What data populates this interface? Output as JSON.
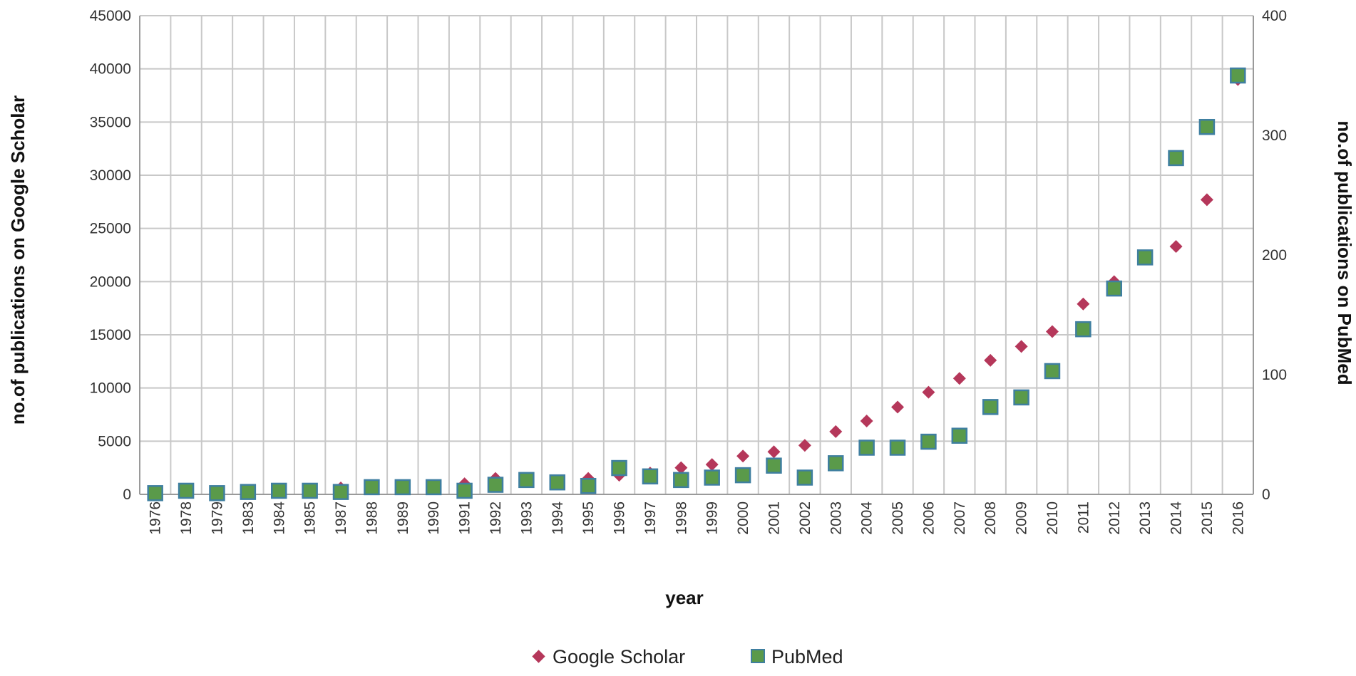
{
  "chart_data": {
    "type": "scatter",
    "xlabel": "year",
    "ylabel": "no.of publications on Google Scholar",
    "y2label": "no.of publications on PubMed",
    "ylim": [
      0,
      45000
    ],
    "y2lim": [
      0,
      400
    ],
    "yticks": [
      "0",
      "5000",
      "10000",
      "15000",
      "20000",
      "25000",
      "30000",
      "35000",
      "40000",
      "45000"
    ],
    "y2ticks": [
      "0",
      "100",
      "200",
      "300",
      "400"
    ],
    "categories": [
      "1976",
      "1978",
      "1979",
      "1983",
      "1984",
      "1985",
      "1987",
      "1988",
      "1989",
      "1990",
      "1991",
      "1992",
      "1993",
      "1994",
      "1995",
      "1996",
      "1997",
      "1998",
      "1999",
      "2000",
      "2001",
      "2002",
      "2003",
      "2004",
      "2005",
      "2006",
      "2007",
      "2008",
      "2009",
      "2010",
      "2011",
      "2012",
      "2013",
      "2014",
      "2015",
      "2016"
    ],
    "grid": true,
    "legend_position": "bottom",
    "series": [
      {
        "name": "Google Scholar",
        "axis": "left",
        "marker": "diamond",
        "color": "#b5375a",
        "values": [
          150,
          300,
          250,
          300,
          350,
          400,
          600,
          700,
          750,
          800,
          1000,
          1500,
          1300,
          1200,
          1500,
          1800,
          2000,
          2500,
          2800,
          3600,
          4000,
          4600,
          5900,
          6900,
          8200,
          9600,
          10900,
          12600,
          13900,
          15300,
          17900,
          20000,
          22300,
          23300,
          27700,
          39000
        ]
      },
      {
        "name": "PubMed",
        "axis": "right",
        "marker": "square",
        "color": "#5a9a4a",
        "edge": "#3f7fa0",
        "values": [
          1,
          3,
          1,
          2,
          3,
          3,
          2,
          6,
          6,
          6,
          3,
          8,
          12,
          10,
          7,
          22,
          15,
          12,
          14,
          16,
          24,
          14,
          26,
          39,
          39,
          44,
          49,
          73,
          81,
          103,
          138,
          172,
          198,
          281,
          307,
          350
        ]
      }
    ]
  }
}
